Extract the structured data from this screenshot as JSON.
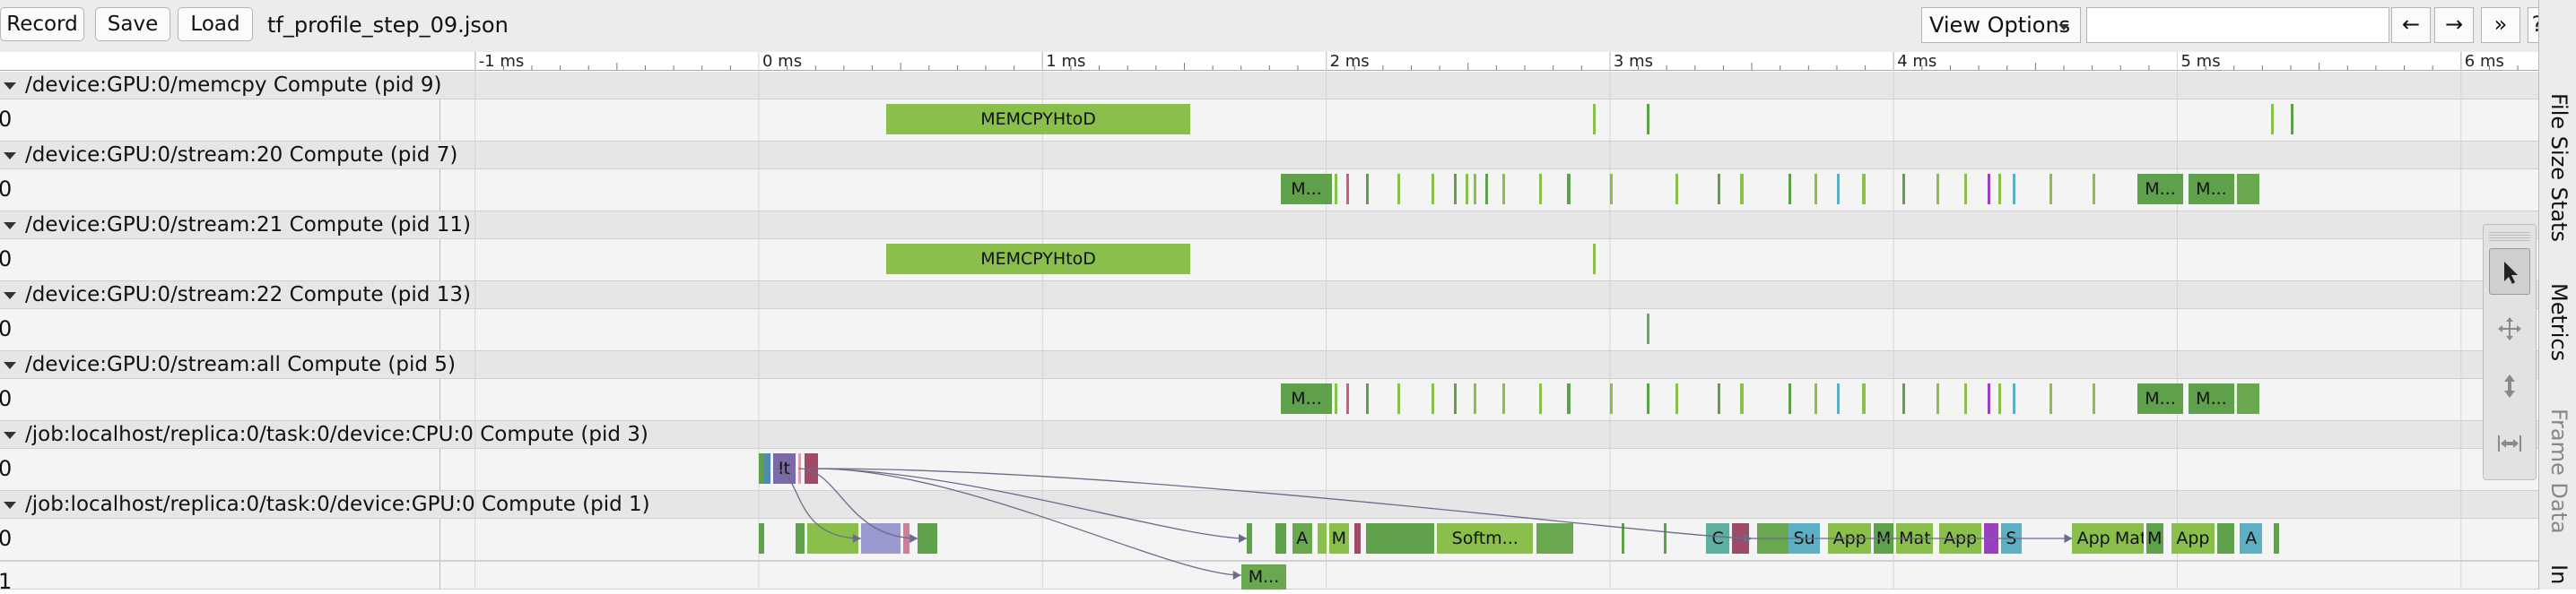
{
  "toolbar": {
    "record_label": "Record",
    "save_label": "Save",
    "load_label": "Load",
    "file_name": "tf_profile_step_09.json",
    "view_options_label": "View Options",
    "search_placeholder": "",
    "prev_label": "←",
    "next_label": "→",
    "expand_label": "»",
    "help_label": "?"
  },
  "ruler": {
    "ticks": [
      "-1 ms",
      "0 ms",
      "1 ms",
      "2 ms",
      "3 ms",
      "4 ms",
      "5 ms",
      "6 ms"
    ]
  },
  "processes": [
    {
      "id": "memcpy",
      "label": "/device:GPU:0/memcpy Compute (pid 9)",
      "threads": [
        "0"
      ]
    },
    {
      "id": "stream20",
      "label": "/device:GPU:0/stream:20 Compute (pid 7)",
      "threads": [
        "0"
      ]
    },
    {
      "id": "stream21",
      "label": "/device:GPU:0/stream:21 Compute (pid 11)",
      "threads": [
        "0"
      ]
    },
    {
      "id": "stream22",
      "label": "/device:GPU:0/stream:22 Compute (pid 13)",
      "threads": [
        "0"
      ]
    },
    {
      "id": "streamall",
      "label": "/device:GPU:0/stream:all Compute (pid 5)",
      "threads": [
        "0"
      ]
    },
    {
      "id": "cpu",
      "label": "/job:localhost/replica:0/task:0/device:CPU:0 Compute (pid 3)",
      "threads": [
        "0"
      ]
    },
    {
      "id": "gpu",
      "label": "/job:localhost/replica:0/task:0/device:GPU:0 Compute (pid 1)",
      "threads": [
        "0",
        "1"
      ]
    }
  ],
  "events": {
    "memcpy": [
      {
        "t0": 0.45,
        "t1": 1.52,
        "label": "MEMCPYHtoD",
        "color": "#8bbf4c"
      },
      {
        "t0": 2.94,
        "t1": 2.95,
        "label": "",
        "color": "#8bbf4c"
      },
      {
        "t0": 3.13,
        "t1": 3.14,
        "label": "",
        "color": "#5fa04a"
      },
      {
        "t0": 5.33,
        "t1": 5.34,
        "label": "",
        "color": "#8bbf4c"
      },
      {
        "t0": 5.4,
        "t1": 5.41,
        "label": "",
        "color": "#5fa04a"
      }
    ],
    "stream20": [
      {
        "t0": 1.84,
        "t1": 2.02,
        "label": "M...",
        "color": "#5fa04a"
      },
      {
        "t0": 2.03,
        "t1": 2.04,
        "label": "",
        "color": "#8bbf4c"
      },
      {
        "t0": 2.07,
        "t1": 2.08,
        "label": "",
        "color": "#d05c7a"
      },
      {
        "t0": 2.14,
        "t1": 2.15,
        "label": "",
        "color": "#5fa04a"
      },
      {
        "t0": 2.25,
        "t1": 2.26,
        "label": "",
        "color": "#8bbf4c"
      },
      {
        "t0": 2.37,
        "t1": 2.38,
        "label": "",
        "color": "#8bbf4c"
      },
      {
        "t0": 2.45,
        "t1": 2.46,
        "label": "",
        "color": "#5fa04a"
      },
      {
        "t0": 2.49,
        "t1": 2.5,
        "label": "",
        "color": "#8bbf4c"
      },
      {
        "t0": 2.52,
        "t1": 2.53,
        "label": "",
        "color": "#8bbf4c"
      },
      {
        "t0": 2.56,
        "t1": 2.57,
        "label": "",
        "color": "#5fa04a"
      },
      {
        "t0": 2.62,
        "t1": 2.63,
        "label": "",
        "color": "#8bbf4c"
      },
      {
        "t0": 2.75,
        "t1": 2.76,
        "label": "",
        "color": "#8bbf4c"
      },
      {
        "t0": 2.85,
        "t1": 2.86,
        "label": "",
        "color": "#5fa04a"
      },
      {
        "t0": 3.0,
        "t1": 3.01,
        "label": "",
        "color": "#8bbf4c"
      },
      {
        "t0": 3.23,
        "t1": 3.24,
        "label": "",
        "color": "#8bbf4c"
      },
      {
        "t0": 3.38,
        "t1": 3.39,
        "label": "",
        "color": "#5fa04a"
      },
      {
        "t0": 3.46,
        "t1": 3.47,
        "label": "",
        "color": "#8bbf4c"
      },
      {
        "t0": 3.63,
        "t1": 3.64,
        "label": "",
        "color": "#5fa04a"
      },
      {
        "t0": 3.72,
        "t1": 3.73,
        "label": "",
        "color": "#8bbf4c"
      },
      {
        "t0": 3.8,
        "t1": 3.81,
        "label": "",
        "color": "#5db0c4"
      },
      {
        "t0": 3.89,
        "t1": 3.9,
        "label": "",
        "color": "#8bbf4c"
      },
      {
        "t0": 4.03,
        "t1": 4.04,
        "label": "",
        "color": "#5fa04a"
      },
      {
        "t0": 4.15,
        "t1": 4.16,
        "label": "",
        "color": "#8bbf4c"
      },
      {
        "t0": 4.25,
        "t1": 4.26,
        "label": "",
        "color": "#8bbf4c"
      },
      {
        "t0": 4.33,
        "t1": 4.34,
        "label": "",
        "color": "#9a3fbd"
      },
      {
        "t0": 4.37,
        "t1": 4.38,
        "label": "",
        "color": "#8bbf4c"
      },
      {
        "t0": 4.42,
        "t1": 4.43,
        "label": "",
        "color": "#5db0c4"
      },
      {
        "t0": 4.55,
        "t1": 4.56,
        "label": "",
        "color": "#8bbf4c"
      },
      {
        "t0": 4.7,
        "t1": 4.71,
        "label": "",
        "color": "#8bbf4c"
      },
      {
        "t0": 4.86,
        "t1": 5.02,
        "label": "M...",
        "color": "#5fa04a"
      },
      {
        "t0": 5.04,
        "t1": 5.2,
        "label": "M...",
        "color": "#5fa04a"
      },
      {
        "t0": 5.21,
        "t1": 5.29,
        "label": "",
        "color": "#6aa84f"
      }
    ],
    "stream21": [
      {
        "t0": 0.45,
        "t1": 1.52,
        "label": "MEMCPYHtoD",
        "color": "#8bbf4c"
      },
      {
        "t0": 2.94,
        "t1": 2.95,
        "label": "",
        "color": "#8bbf4c"
      }
    ],
    "stream22": [
      {
        "t0": 3.13,
        "t1": 3.14,
        "label": "",
        "color": "#7a9a7a"
      }
    ],
    "streamall": [
      {
        "t0": 1.84,
        "t1": 2.02,
        "label": "M...",
        "color": "#5fa04a"
      },
      {
        "t0": 2.03,
        "t1": 2.04,
        "label": "",
        "color": "#8bbf4c"
      },
      {
        "t0": 2.07,
        "t1": 2.08,
        "label": "",
        "color": "#d05c7a"
      },
      {
        "t0": 2.14,
        "t1": 2.15,
        "label": "",
        "color": "#5fa04a"
      },
      {
        "t0": 2.25,
        "t1": 2.26,
        "label": "",
        "color": "#8bbf4c"
      },
      {
        "t0": 2.37,
        "t1": 2.38,
        "label": "",
        "color": "#8bbf4c"
      },
      {
        "t0": 2.45,
        "t1": 2.46,
        "label": "",
        "color": "#5fa04a"
      },
      {
        "t0": 2.52,
        "t1": 2.53,
        "label": "",
        "color": "#8bbf4c"
      },
      {
        "t0": 2.62,
        "t1": 2.63,
        "label": "",
        "color": "#8bbf4c"
      },
      {
        "t0": 2.75,
        "t1": 2.76,
        "label": "",
        "color": "#8bbf4c"
      },
      {
        "t0": 2.85,
        "t1": 2.86,
        "label": "",
        "color": "#5fa04a"
      },
      {
        "t0": 3.0,
        "t1": 3.01,
        "label": "",
        "color": "#8bbf4c"
      },
      {
        "t0": 3.13,
        "t1": 3.14,
        "label": "",
        "color": "#5fa04a"
      },
      {
        "t0": 3.23,
        "t1": 3.24,
        "label": "",
        "color": "#8bbf4c"
      },
      {
        "t0": 3.38,
        "t1": 3.39,
        "label": "",
        "color": "#5fa04a"
      },
      {
        "t0": 3.46,
        "t1": 3.47,
        "label": "",
        "color": "#8bbf4c"
      },
      {
        "t0": 3.63,
        "t1": 3.64,
        "label": "",
        "color": "#5fa04a"
      },
      {
        "t0": 3.72,
        "t1": 3.73,
        "label": "",
        "color": "#8bbf4c"
      },
      {
        "t0": 3.8,
        "t1": 3.81,
        "label": "",
        "color": "#5db0c4"
      },
      {
        "t0": 3.89,
        "t1": 3.9,
        "label": "",
        "color": "#8bbf4c"
      },
      {
        "t0": 4.03,
        "t1": 4.04,
        "label": "",
        "color": "#5fa04a"
      },
      {
        "t0": 4.15,
        "t1": 4.16,
        "label": "",
        "color": "#8bbf4c"
      },
      {
        "t0": 4.25,
        "t1": 4.26,
        "label": "",
        "color": "#8bbf4c"
      },
      {
        "t0": 4.33,
        "t1": 4.34,
        "label": "",
        "color": "#9a3fbd"
      },
      {
        "t0": 4.37,
        "t1": 4.38,
        "label": "",
        "color": "#8bbf4c"
      },
      {
        "t0": 4.42,
        "t1": 4.43,
        "label": "",
        "color": "#5db0c4"
      },
      {
        "t0": 4.55,
        "t1": 4.56,
        "label": "",
        "color": "#8bbf4c"
      },
      {
        "t0": 4.7,
        "t1": 4.71,
        "label": "",
        "color": "#8bbf4c"
      },
      {
        "t0": 4.86,
        "t1": 5.02,
        "label": "M...",
        "color": "#5fa04a"
      },
      {
        "t0": 5.04,
        "t1": 5.2,
        "label": "M...",
        "color": "#5fa04a"
      },
      {
        "t0": 5.21,
        "t1": 5.29,
        "label": "",
        "color": "#6aa84f"
      }
    ],
    "cpu": [
      {
        "t0": 0.0,
        "t1": 0.02,
        "label": "",
        "color": "#5fa04a"
      },
      {
        "t0": 0.02,
        "t1": 0.04,
        "label": "",
        "color": "#4e8bb0"
      },
      {
        "t0": 0.05,
        "t1": 0.13,
        "label": "It",
        "color": "#7a6aa8"
      },
      {
        "t0": 0.14,
        "t1": 0.15,
        "label": "",
        "color": "#d9a0b0"
      },
      {
        "t0": 0.16,
        "t1": 0.21,
        "label": "",
        "color": "#a04a6a"
      }
    ],
    "gpu0": [
      {
        "t0": 0.0,
        "t1": 0.02,
        "label": "",
        "color": "#5fa04a"
      },
      {
        "t0": 0.13,
        "t1": 0.16,
        "label": "",
        "color": "#5fa04a"
      },
      {
        "t0": 0.17,
        "t1": 0.35,
        "label": "",
        "color": "#8bbf4c"
      },
      {
        "t0": 0.36,
        "t1": 0.5,
        "label": "",
        "color": "#9a9ad0"
      },
      {
        "t0": 0.51,
        "t1": 0.53,
        "label": "",
        "color": "#d07ca0"
      },
      {
        "t0": 0.56,
        "t1": 0.63,
        "label": "",
        "color": "#5fa04a"
      },
      {
        "t0": 1.72,
        "t1": 1.74,
        "label": "",
        "color": "#5fa04a"
      },
      {
        "t0": 1.82,
        "t1": 1.86,
        "label": "",
        "color": "#5fa04a"
      },
      {
        "t0": 1.88,
        "t1": 1.95,
        "label": "A",
        "color": "#6aa84f"
      },
      {
        "t0": 1.97,
        "t1": 2.0,
        "label": "",
        "color": "#8bbf4c"
      },
      {
        "t0": 2.01,
        "t1": 2.08,
        "label": "M",
        "color": "#8bbf4c"
      },
      {
        "t0": 2.1,
        "t1": 2.12,
        "label": "",
        "color": "#a04a6a"
      },
      {
        "t0": 2.14,
        "t1": 2.38,
        "label": "",
        "color": "#5fa04a"
      },
      {
        "t0": 2.39,
        "t1": 2.73,
        "label": "Softm...",
        "color": "#8bbf4c"
      },
      {
        "t0": 2.74,
        "t1": 2.87,
        "label": "",
        "color": "#6aa84f"
      },
      {
        "t0": 3.04,
        "t1": 3.05,
        "label": "",
        "color": "#5fa04a"
      },
      {
        "t0": 3.19,
        "t1": 3.2,
        "label": "",
        "color": "#5fa04a"
      },
      {
        "t0": 3.34,
        "t1": 3.42,
        "label": "C",
        "color": "#5db0a0"
      },
      {
        "t0": 3.43,
        "t1": 3.49,
        "label": "",
        "color": "#a04a6a"
      },
      {
        "t0": 3.52,
        "t1": 3.63,
        "label": "",
        "color": "#6aa84f"
      },
      {
        "t0": 3.63,
        "t1": 3.74,
        "label": "Su",
        "color": "#5db0c4"
      },
      {
        "t0": 3.77,
        "t1": 3.92,
        "label": "App",
        "color": "#8bbf4c"
      },
      {
        "t0": 3.93,
        "t1": 4.0,
        "label": "M",
        "color": "#5fa04a"
      },
      {
        "t0": 4.01,
        "t1": 4.14,
        "label": "Mat",
        "color": "#8bbf4c"
      },
      {
        "t0": 4.16,
        "t1": 4.31,
        "label": "App",
        "color": "#8bbf4c"
      },
      {
        "t0": 4.32,
        "t1": 4.37,
        "label": "",
        "color": "#9a3fbd"
      },
      {
        "t0": 4.38,
        "t1": 4.45,
        "label": "S",
        "color": "#5db0c4"
      },
      {
        "t0": 4.63,
        "t1": 4.78,
        "label": "App",
        "color": "#8bbf4c"
      },
      {
        "t0": 4.78,
        "t1": 4.88,
        "label": "Mat",
        "color": "#8bbf4c"
      },
      {
        "t0": 4.89,
        "t1": 4.95,
        "label": "M",
        "color": "#5fa04a"
      },
      {
        "t0": 4.98,
        "t1": 5.13,
        "label": "App",
        "color": "#8bbf4c"
      },
      {
        "t0": 5.14,
        "t1": 5.2,
        "label": "",
        "color": "#5fa04a"
      },
      {
        "t0": 5.22,
        "t1": 5.3,
        "label": "A",
        "color": "#5db0c4"
      },
      {
        "t0": 5.34,
        "t1": 5.36,
        "label": "",
        "color": "#5fa04a"
      }
    ],
    "gpu1": [
      {
        "t0": 1.7,
        "t1": 1.86,
        "label": "M...",
        "color": "#6aa84f"
      }
    ]
  },
  "flows": [
    {
      "from_track": "cpu",
      "from_t": 0.14,
      "to_track": "gpu0",
      "to_t": 0.56
    },
    {
      "from_track": "cpu",
      "from_t": 0.18,
      "to_track": "gpu0",
      "to_t": 1.72
    },
    {
      "from_track": "cpu",
      "from_t": 0.2,
      "to_track": "gpu1",
      "to_t": 1.7
    },
    {
      "from_track": "cpu",
      "from_t": 0.21,
      "to_track": "gpu0",
      "to_t": 3.5
    },
    {
      "from_track": "cpu",
      "from_t": 0.05,
      "to_track": "gpu0",
      "to_t": 0.36
    },
    {
      "from_track": "gpu0",
      "from_t": 3.49,
      "to_track": "gpu0",
      "to_t": 4.63
    }
  ],
  "side_tabs": [
    "File Size Stats",
    "Metrics",
    "Frame Data",
    "In"
  ],
  "mouse_modes": [
    {
      "name": "selection-mode",
      "icon": "cursor-arrow-icon",
      "active": true
    },
    {
      "name": "pan-mode",
      "icon": "pan-arrows-icon",
      "active": false
    },
    {
      "name": "zoom-mode",
      "icon": "zoom-arrows-icon",
      "active": false
    },
    {
      "name": "timing-mode",
      "icon": "timing-arrows-icon",
      "active": false
    }
  ]
}
